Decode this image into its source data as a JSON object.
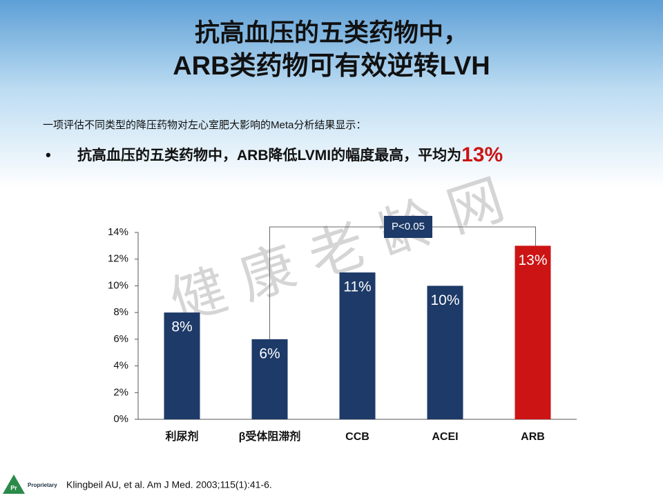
{
  "header": {
    "title_lines": [
      "抗高血压的五类药物中，",
      "ARB类药物可有效逆转LVH"
    ],
    "intro": "一项评估不同类型的降压药物对左心室肥大影响的Meta分析结果显示：",
    "bullet": "抗高血压的五类药物中，ARB降低LVMI的幅度最高，平均为",
    "highlight": "13%"
  },
  "chart_data": {
    "type": "bar",
    "categories": [
      "利尿剂",
      "β受体阻滞剂",
      "CCB",
      "ACEI",
      "ARB"
    ],
    "values": [
      8,
      6,
      11,
      10,
      13
    ],
    "value_labels": [
      "8%",
      "6%",
      "11%",
      "10%",
      "13%"
    ],
    "colors": [
      "#1d3a68",
      "#1d3a68",
      "#1d3a68",
      "#1d3a68",
      "#cc1414"
    ],
    "ylim": [
      0,
      14
    ],
    "yticks": [
      {
        "value": 0,
        "label": "0%"
      },
      {
        "value": 2,
        "label": "2%"
      },
      {
        "value": 4,
        "label": "4%"
      },
      {
        "value": 6,
        "label": "6%"
      },
      {
        "value": 8,
        "label": "8%"
      },
      {
        "value": 10,
        "label": "10%"
      },
      {
        "value": 12,
        "label": "12%"
      },
      {
        "value": 14,
        "label": "14%"
      }
    ],
    "annotation": "P<0.05"
  },
  "footer": {
    "citation": "Klingbeil AU, et al. Am J Med. 2003;115(1):41-6.",
    "logo_mark": "Pr",
    "logo_text": "Proprietary"
  },
  "watermark": "健 康 老 龄 网"
}
